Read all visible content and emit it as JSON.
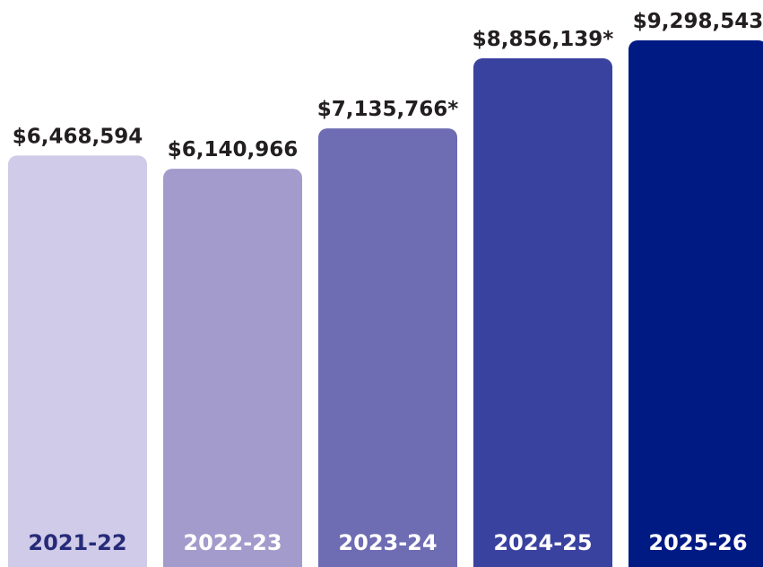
{
  "chart_data": {
    "type": "bar",
    "categories": [
      "2021-22",
      "2022-23",
      "2023-24",
      "2024-25",
      "2025-26"
    ],
    "values": [
      6468594,
      6140966,
      7135766,
      8856139,
      9298543
    ],
    "value_labels": [
      "$6,468,594",
      "$6,140,966",
      "$7,135,766*",
      "$8,856,139*",
      "$9,298,543"
    ],
    "colors": [
      "#cfcbe8",
      "#a39bcb",
      "#6e6cb3",
      "#3a42a0",
      "#001a84"
    ]
  }
}
